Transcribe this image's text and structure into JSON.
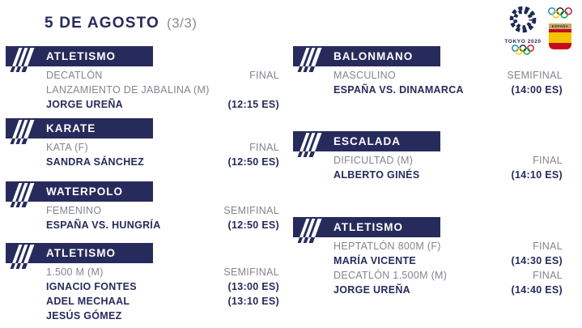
{
  "page": {
    "title": "5 DE AGOSTO",
    "counter": "(3/3)"
  },
  "logos": {
    "tokyo_text": "TOKYO 2020",
    "spain_text": "ESPAÑA"
  },
  "colors": {
    "navy": "#272b5c",
    "gray": "#84868f",
    "ring_blue": "#0085c7",
    "ring_black": "#1b1b1b",
    "ring_red": "#df0024",
    "ring_yellow": "#f4c300",
    "ring_green": "#009f3d",
    "flag_red": "#c60b1e",
    "flag_yellow": "#f5c400",
    "shield_tan": "#c9ab62"
  },
  "columns": {
    "left": [
      {
        "sport": "ATLETISMO",
        "rows": [
          {
            "left": "DECATLÓN",
            "right": "FINAL",
            "emphasis": "gray"
          },
          {
            "left": "LANZAMIENTO DE JABALINA (M)",
            "right": "",
            "emphasis": "gray"
          },
          {
            "left": "JORGE UREÑA",
            "right": "(12:15 ES)",
            "emphasis": "bold"
          }
        ]
      },
      {
        "sport": "KARATE",
        "rows": [
          {
            "left": "KATA (F)",
            "right": "FINAL",
            "emphasis": "gray"
          },
          {
            "left": "SANDRA SÁNCHEZ",
            "right": "(12:50 ES)",
            "emphasis": "bold"
          }
        ]
      },
      {
        "sport": "WATERPOLO",
        "rows": [
          {
            "left": "FEMENINO",
            "right": "SEMIFINAL",
            "emphasis": "gray"
          },
          {
            "left": "ESPAÑA VS. HUNGRÍA",
            "right": "(12:50 ES)",
            "emphasis": "bold"
          }
        ]
      },
      {
        "sport": "ATLETISMO",
        "rows": [
          {
            "left": "1.500 M (M)",
            "right": "SEMIFINAL",
            "emphasis": "gray"
          },
          {
            "left": "IGNACIO FONTES",
            "right": "(13:00 ES)",
            "emphasis": "bold"
          },
          {
            "left": "ADEL MECHAAL",
            "right": "(13:10 ES)",
            "emphasis": "bold"
          },
          {
            "left": "JESÚS GÓMEZ",
            "right": "",
            "emphasis": "bold"
          }
        ]
      }
    ],
    "right": [
      {
        "sport": "BALONMANO",
        "rows": [
          {
            "left": "MASCULINO",
            "right": "SEMIFINAL",
            "emphasis": "gray"
          },
          {
            "left": "ESPAÑA VS. DINAMARCA",
            "right": "(14:00 ES)",
            "emphasis": "bold"
          }
        ]
      },
      {
        "sport": "ESCALADA",
        "rows": [
          {
            "left": "DIFICULTAD (M)",
            "right": "FINAL",
            "emphasis": "gray"
          },
          {
            "left": "ALBERTO GINÉS",
            "right": "(14:10 ES)",
            "emphasis": "bold"
          }
        ]
      },
      {
        "sport": "ATLETISMO",
        "rows": [
          {
            "left": "HEPTATLÓN 800M (F)",
            "right": "FINAL",
            "emphasis": "gray"
          },
          {
            "left": "MARÍA VICENTE",
            "right": "(14:30 ES)",
            "emphasis": "bold"
          },
          {
            "left": "DECATLÓN 1.500M (M)",
            "right": "FINAL",
            "emphasis": "gray"
          },
          {
            "left": "JORGE UREÑA",
            "right": "(14:40 ES)",
            "emphasis": "bold"
          }
        ]
      }
    ]
  }
}
